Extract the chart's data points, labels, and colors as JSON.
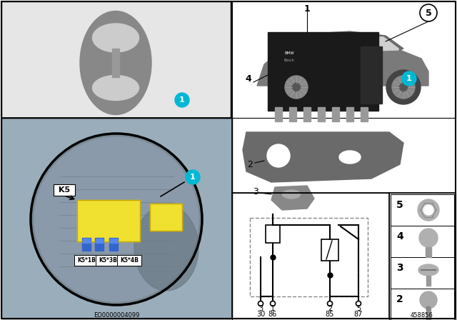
{
  "bg_color": "#ffffff",
  "panel_gray": "#e6e6e6",
  "yellow": "#f0e030",
  "cyan": "#00b8d4",
  "doc_left": "EO0000004099",
  "doc_right": "458856",
  "connector_labels": [
    "K5*1B",
    "K5*3B",
    "K5*4B"
  ],
  "k5_label": "K5",
  "pin_nums_top": [
    "3",
    "1",
    "2",
    "5"
  ],
  "pin_nums_bot": [
    "30",
    "86",
    "85",
    "87"
  ]
}
